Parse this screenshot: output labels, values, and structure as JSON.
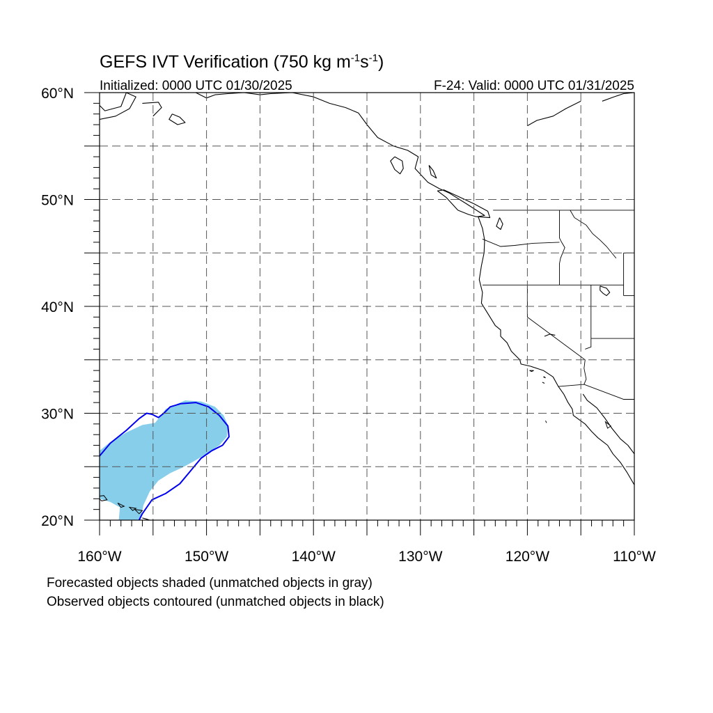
{
  "title": {
    "main": "GEFS IVT Verification (750 kg m",
    "unit_exp1": "-1",
    "unit_s": "s",
    "unit_exp2": "-1",
    "close": ")"
  },
  "subtitle": {
    "initialized": "Initialized: 0000 UTC 01/30/2025",
    "valid": "F-24: Valid: 0000 UTC 01/31/2025"
  },
  "axes": {
    "lon_min": -160,
    "lon_max": -110,
    "lat_min": 20,
    "lat_max": 60,
    "lat_labels": [
      {
        "value": 60,
        "text": "60°N"
      },
      {
        "value": 50,
        "text": "50°N"
      },
      {
        "value": 40,
        "text": "40°N"
      },
      {
        "value": 30,
        "text": "30°N"
      },
      {
        "value": 20,
        "text": "20°N"
      }
    ],
    "lon_labels": [
      {
        "value": -160,
        "text": "160°W"
      },
      {
        "value": -150,
        "text": "150°W"
      },
      {
        "value": -140,
        "text": "140°W"
      },
      {
        "value": -130,
        "text": "130°W"
      },
      {
        "value": -120,
        "text": "120°W"
      },
      {
        "value": -110,
        "text": "110°W"
      }
    ],
    "grid_interval_deg": 5,
    "grid": "dashed"
  },
  "objects": {
    "forecast_color": "#87ceeb",
    "observed_color": "#0000ee",
    "forecast_shape": [
      [
        -160,
        26.5
      ],
      [
        -159,
        27.3
      ],
      [
        -157.5,
        28.2
      ],
      [
        -156,
        28.9
      ],
      [
        -154.8,
        29.1
      ],
      [
        -153.8,
        30.4
      ],
      [
        -152,
        31.2
      ],
      [
        -150.5,
        31.1
      ],
      [
        -149.2,
        30.6
      ],
      [
        -148.4,
        29.8
      ],
      [
        -148,
        28.9
      ],
      [
        -148.1,
        27.8
      ],
      [
        -148.8,
        27
      ],
      [
        -150,
        26.2
      ],
      [
        -151.2,
        25.5
      ],
      [
        -152.3,
        24.9
      ],
      [
        -153.4,
        24.4
      ],
      [
        -154.5,
        23.7
      ],
      [
        -155.3,
        22.7
      ],
      [
        -155.9,
        21.4
      ],
      [
        -156.2,
        20
      ],
      [
        -158.2,
        20
      ],
      [
        -158.1,
        21.2
      ],
      [
        -159,
        21.7
      ],
      [
        -160,
        22
      ]
    ],
    "observed_contour": [
      [
        -160,
        26
      ],
      [
        -159,
        27.2
      ],
      [
        -157.5,
        28.4
      ],
      [
        -156.3,
        29.5
      ],
      [
        -155.6,
        30
      ],
      [
        -155.1,
        29.9
      ],
      [
        -154.5,
        29.6
      ],
      [
        -154,
        30
      ],
      [
        -153.4,
        30.6
      ],
      [
        -152.4,
        30.9
      ],
      [
        -151,
        31
      ],
      [
        -149.8,
        30.6
      ],
      [
        -148.8,
        29.8
      ],
      [
        -148,
        28.8
      ],
      [
        -147.9,
        27.8
      ],
      [
        -148.5,
        27
      ],
      [
        -149.5,
        26.5
      ],
      [
        -150.5,
        25.8
      ],
      [
        -151.5,
        24.6
      ],
      [
        -152.5,
        23.4
      ],
      [
        -153.8,
        22.5
      ],
      [
        -155.1,
        21.9
      ],
      [
        -156,
        20.6
      ],
      [
        -156.3,
        20
      ]
    ]
  },
  "coastlines": [
    [
      [
        -160,
        57.5
      ],
      [
        -158.5,
        57.8
      ],
      [
        -157.2,
        58.5
      ],
      [
        -156.6,
        59.6
      ],
      [
        -157.5,
        60
      ],
      [
        -158,
        58.7
      ],
      [
        -159.5,
        58.3
      ],
      [
        -160,
        58.8
      ]
    ],
    [
      [
        -156,
        59
      ],
      [
        -154.5,
        59.1
      ],
      [
        -154.2,
        58.6
      ],
      [
        -155,
        57.8
      ]
    ],
    [
      [
        -153.2,
        58
      ],
      [
        -152.5,
        57.7
      ],
      [
        -152,
        57.2
      ],
      [
        -152.7,
        57
      ],
      [
        -153.5,
        57.5
      ],
      [
        -153.2,
        58
      ]
    ],
    [
      [
        -151,
        60
      ],
      [
        -150,
        59.5
      ],
      [
        -149.2,
        59.8
      ],
      [
        -148,
        59.9
      ],
      [
        -146.5,
        60
      ],
      [
        -145,
        59.8
      ],
      [
        -144,
        59.9
      ],
      [
        -142,
        60
      ],
      [
        -140,
        59.6
      ],
      [
        -138.5,
        59
      ],
      [
        -137,
        58.6
      ],
      [
        -135.8,
        58.1
      ],
      [
        -135,
        57
      ],
      [
        -134,
        55.8
      ],
      [
        -132.5,
        55
      ],
      [
        -131.2,
        54.6
      ],
      [
        -130.2,
        54
      ],
      [
        -130.5,
        52.9
      ],
      [
        -129.3,
        51.6
      ],
      [
        -128.2,
        51
      ],
      [
        -127.3,
        50.6
      ],
      [
        -125.7,
        49.6
      ],
      [
        -124,
        48.5
      ],
      [
        -124.6,
        48.4
      ],
      [
        -124.2,
        47.3
      ],
      [
        -124,
        46.2
      ],
      [
        -124.05,
        45
      ],
      [
        -124.3,
        43.8
      ],
      [
        -124.5,
        42.5
      ],
      [
        -124.2,
        41.3
      ],
      [
        -124.3,
        40.3
      ],
      [
        -123.8,
        39.5
      ],
      [
        -123,
        38.2
      ],
      [
        -122.5,
        37.8
      ],
      [
        -122.5,
        37.2
      ],
      [
        -121.9,
        36.6
      ],
      [
        -121.5,
        35.8
      ],
      [
        -120.7,
        35
      ],
      [
        -120.6,
        34.6
      ],
      [
        -119.7,
        34.4
      ],
      [
        -118.5,
        34
      ],
      [
        -117.6,
        33.4
      ],
      [
        -117.1,
        32.5
      ],
      [
        -116.6,
        31.8
      ],
      [
        -116.2,
        31
      ],
      [
        -115.8,
        30.4
      ],
      [
        -115.7,
        29.8
      ],
      [
        -114.6,
        29
      ],
      [
        -114,
        28.3
      ],
      [
        -113.4,
        27.7
      ],
      [
        -112.5,
        27
      ],
      [
        -112,
        26.2
      ],
      [
        -111.3,
        25.4
      ],
      [
        -110.7,
        24.5
      ],
      [
        -110,
        23.3
      ]
    ],
    [
      [
        -114.8,
        31.8
      ],
      [
        -114.4,
        31.2
      ],
      [
        -113.5,
        30.5
      ],
      [
        -112.8,
        29.6
      ],
      [
        -112.1,
        28.6
      ],
      [
        -111.3,
        27.6
      ],
      [
        -110.6,
        27
      ],
      [
        -110,
        26.2
      ]
    ],
    [
      [
        -129.2,
        53.2
      ],
      [
        -129,
        52.3
      ],
      [
        -128.5,
        52
      ],
      [
        -128.8,
        52.7
      ],
      [
        -129.2,
        53.2
      ]
    ],
    [
      [
        -132.4,
        54
      ],
      [
        -131.7,
        53.6
      ],
      [
        -131.6,
        52.9
      ],
      [
        -131.9,
        52.4
      ],
      [
        -132.4,
        52.8
      ],
      [
        -132.8,
        53.6
      ],
      [
        -132.4,
        54
      ]
    ],
    [
      [
        -120,
        56.9
      ],
      [
        -119.1,
        57.4
      ],
      [
        -117.6,
        57.8
      ],
      [
        -116.4,
        58.5
      ],
      [
        -115,
        59.2
      ]
    ],
    [
      [
        -113,
        59.2
      ],
      [
        -111.9,
        59.6
      ],
      [
        -111,
        59.9
      ],
      [
        -110,
        60
      ]
    ],
    [
      [
        -118.4,
        37.2
      ],
      [
        -117.9,
        37.4
      ],
      [
        -117.4,
        37.3
      ]
    ],
    [
      [
        -113.2,
        41.9
      ],
      [
        -112.6,
        41.7
      ],
      [
        -112.3,
        41.3
      ],
      [
        -112.6,
        41
      ],
      [
        -112.9,
        41.2
      ],
      [
        -113.2,
        41.5
      ],
      [
        -113.2,
        41.9
      ]
    ],
    [
      [
        -126.5,
        49
      ],
      [
        -125.5,
        48.6
      ],
      [
        -124.8,
        48.4
      ],
      [
        -123.5,
        48.3
      ],
      [
        -123.7,
        48.9
      ],
      [
        -125,
        49.6
      ],
      [
        -126.5,
        50.3
      ],
      [
        -127.8,
        50.9
      ],
      [
        -128.4,
        50.8
      ],
      [
        -127.6,
        50.2
      ],
      [
        -126.5,
        49
      ]
    ],
    [
      [
        -122.6,
        48.3
      ],
      [
        -122.3,
        47.7
      ],
      [
        -122.5,
        47.2
      ],
      [
        -122.9,
        47.5
      ],
      [
        -122.6,
        48.3
      ]
    ]
  ],
  "islands": [
    [
      [
        -160.3,
        22.2
      ],
      [
        -159.6,
        22.3
      ],
      [
        -159.3,
        21.9
      ],
      [
        -159.8,
        21.8
      ],
      [
        -160.3,
        22.2
      ]
    ],
    [
      [
        -158.3,
        21.6
      ],
      [
        -157.7,
        21.3
      ],
      [
        -158,
        21.2
      ],
      [
        -158.3,
        21.6
      ]
    ],
    [
      [
        -157.2,
        21.2
      ],
      [
        -156.6,
        21.1
      ],
      [
        -156.9,
        20.9
      ],
      [
        -157.2,
        21.2
      ]
    ],
    [
      [
        -156.7,
        21
      ],
      [
        -156,
        20.9
      ],
      [
        -156.3,
        20.6
      ],
      [
        -156.7,
        21
      ]
    ],
    [
      [
        -156,
        20.2
      ],
      [
        -155,
        19.9
      ],
      [
        -155.6,
        20.1
      ],
      [
        -156,
        20.2
      ]
    ],
    [
      [
        -118.5,
        33.4
      ],
      [
        -118.3,
        33.3
      ],
      [
        -118.4,
        33.4
      ]
    ],
    [
      [
        -119.8,
        34
      ],
      [
        -119.4,
        34
      ],
      [
        -119.6,
        33.9
      ]
    ],
    [
      [
        -118.6,
        32.9
      ],
      [
        -118.4,
        32.8
      ]
    ],
    [
      [
        -118.3,
        29.3
      ],
      [
        -118.2,
        29.1
      ]
    ],
    [
      [
        -112.7,
        29.2
      ],
      [
        -112.2,
        28.8
      ],
      [
        -112.5,
        28.6
      ]
    ]
  ],
  "borders": [
    [
      [
        -123.2,
        49
      ],
      [
        -110,
        49
      ]
    ],
    [
      [
        -124.2,
        46.3
      ],
      [
        -122.5,
        45.6
      ],
      [
        -121.2,
        45.7
      ],
      [
        -119.5,
        45.9
      ],
      [
        -117,
        46
      ]
    ],
    [
      [
        -117,
        49
      ],
      [
        -117,
        46.4
      ],
      [
        -116.8,
        46
      ],
      [
        -116.5,
        45.5
      ],
      [
        -116.9,
        44.5
      ],
      [
        -117,
        44
      ],
      [
        -117,
        42
      ]
    ],
    [
      [
        -124.2,
        42
      ],
      [
        -111,
        42
      ]
    ],
    [
      [
        -120,
        42
      ],
      [
        -120,
        39
      ],
      [
        -114.6,
        35
      ],
      [
        -114.7,
        34.2
      ],
      [
        -114.5,
        33.2
      ],
      [
        -114.7,
        32.7
      ]
    ],
    [
      [
        -114.05,
        42
      ],
      [
        -114.05,
        37
      ],
      [
        -114.05,
        36.2
      ],
      [
        -114.6,
        36
      ]
    ],
    [
      [
        -114.05,
        37
      ],
      [
        -109,
        37
      ]
    ],
    [
      [
        -117.1,
        32.5
      ],
      [
        -114.7,
        32.7
      ],
      [
        -111,
        31.3
      ],
      [
        -110,
        31.3
      ]
    ],
    [
      [
        -111,
        45
      ],
      [
        -110,
        45
      ]
    ],
    [
      [
        -111,
        45
      ],
      [
        -111,
        41
      ]
    ],
    [
      [
        -111,
        41
      ],
      [
        -110,
        41
      ]
    ],
    [
      [
        -116,
        49
      ],
      [
        -115.6,
        48.3
      ],
      [
        -114.5,
        47.6
      ],
      [
        -113.9,
        46.8
      ],
      [
        -113.2,
        46.2
      ],
      [
        -112.6,
        45.6
      ],
      [
        -111.7,
        44.5
      ]
    ]
  ],
  "footnotes": {
    "line1": "Forecasted objects shaded (unmatched objects in gray)",
    "line2": "Observed objects contoured (unmatched objects in black)"
  }
}
